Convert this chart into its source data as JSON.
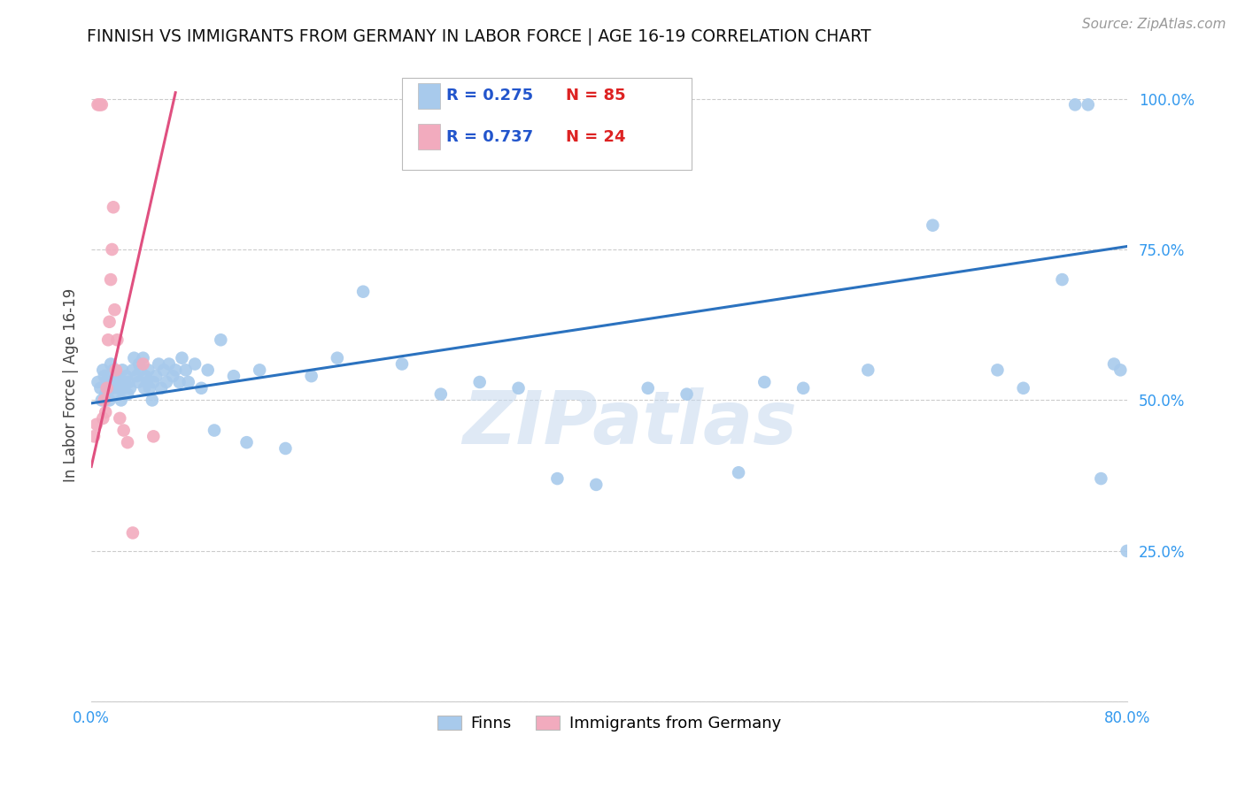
{
  "title": "FINNISH VS IMMIGRANTS FROM GERMANY IN LABOR FORCE | AGE 16-19 CORRELATION CHART",
  "source": "Source: ZipAtlas.com",
  "ylabel": "In Labor Force | Age 16-19",
  "xlim": [
    0.0,
    0.8
  ],
  "ylim": [
    0.0,
    1.05
  ],
  "ytick_vals": [
    0.0,
    0.25,
    0.5,
    0.75,
    1.0
  ],
  "ytick_labels": [
    "",
    "25.0%",
    "50.0%",
    "75.0%",
    "100.0%"
  ],
  "xtick_vals": [
    0.0,
    0.1,
    0.2,
    0.3,
    0.4,
    0.5,
    0.6,
    0.7,
    0.8
  ],
  "xtick_labels": [
    "0.0%",
    "",
    "",
    "",
    "",
    "",
    "",
    "",
    "80.0%"
  ],
  "blue_R": 0.275,
  "blue_N": 85,
  "pink_R": 0.737,
  "pink_N": 24,
  "blue_color": "#A8CAEC",
  "pink_color": "#F2ABBE",
  "blue_line_color": "#2B72BF",
  "pink_line_color": "#E05080",
  "legend_R_color": "#2255CC",
  "legend_N_color": "#DD2222",
  "title_color": "#111111",
  "axis_label_color": "#444444",
  "ytick_color": "#3399EE",
  "xtick_color": "#3399EE",
  "grid_color": "#CCCCCC",
  "watermark_color": "#C5D8EE",
  "blue_line_x": [
    0.0,
    0.8
  ],
  "blue_line_y": [
    0.495,
    0.755
  ],
  "pink_line_x": [
    0.0,
    0.065
  ],
  "pink_line_y": [
    0.39,
    1.01
  ],
  "blue_x": [
    0.005,
    0.007,
    0.008,
    0.009,
    0.01,
    0.011,
    0.012,
    0.013,
    0.014,
    0.015,
    0.016,
    0.017,
    0.018,
    0.019,
    0.02,
    0.021,
    0.022,
    0.023,
    0.024,
    0.025,
    0.026,
    0.027,
    0.028,
    0.029,
    0.03,
    0.032,
    0.033,
    0.035,
    0.036,
    0.037,
    0.038,
    0.04,
    0.041,
    0.042,
    0.043,
    0.044,
    0.045,
    0.047,
    0.048,
    0.05,
    0.052,
    0.054,
    0.056,
    0.058,
    0.06,
    0.063,
    0.065,
    0.068,
    0.07,
    0.073,
    0.075,
    0.08,
    0.085,
    0.09,
    0.095,
    0.1,
    0.11,
    0.12,
    0.13,
    0.15,
    0.17,
    0.19,
    0.21,
    0.24,
    0.27,
    0.3,
    0.33,
    0.36,
    0.39,
    0.43,
    0.46,
    0.5,
    0.52,
    0.55,
    0.6,
    0.65,
    0.7,
    0.72,
    0.75,
    0.76,
    0.77,
    0.78,
    0.79,
    0.795,
    0.8
  ],
  "blue_y": [
    0.53,
    0.52,
    0.5,
    0.55,
    0.54,
    0.51,
    0.53,
    0.54,
    0.5,
    0.56,
    0.52,
    0.55,
    0.53,
    0.51,
    0.54,
    0.52,
    0.53,
    0.5,
    0.55,
    0.52,
    0.53,
    0.54,
    0.51,
    0.53,
    0.52,
    0.55,
    0.57,
    0.54,
    0.53,
    0.56,
    0.55,
    0.57,
    0.52,
    0.54,
    0.53,
    0.55,
    0.52,
    0.5,
    0.53,
    0.54,
    0.56,
    0.52,
    0.55,
    0.53,
    0.56,
    0.54,
    0.55,
    0.53,
    0.57,
    0.55,
    0.53,
    0.56,
    0.52,
    0.55,
    0.45,
    0.6,
    0.54,
    0.43,
    0.55,
    0.42,
    0.54,
    0.57,
    0.68,
    0.56,
    0.51,
    0.53,
    0.52,
    0.37,
    0.36,
    0.52,
    0.51,
    0.38,
    0.53,
    0.52,
    0.55,
    0.79,
    0.55,
    0.52,
    0.7,
    0.99,
    0.99,
    0.37,
    0.56,
    0.55,
    0.25
  ],
  "pink_x": [
    0.002,
    0.004,
    0.005,
    0.006,
    0.007,
    0.008,
    0.009,
    0.01,
    0.011,
    0.012,
    0.013,
    0.014,
    0.015,
    0.016,
    0.017,
    0.018,
    0.019,
    0.02,
    0.022,
    0.025,
    0.028,
    0.032,
    0.04,
    0.048
  ],
  "pink_y": [
    0.44,
    0.46,
    0.99,
    0.99,
    0.99,
    0.99,
    0.47,
    0.5,
    0.48,
    0.52,
    0.6,
    0.63,
    0.7,
    0.75,
    0.82,
    0.65,
    0.55,
    0.6,
    0.47,
    0.45,
    0.43,
    0.28,
    0.56,
    0.44
  ]
}
